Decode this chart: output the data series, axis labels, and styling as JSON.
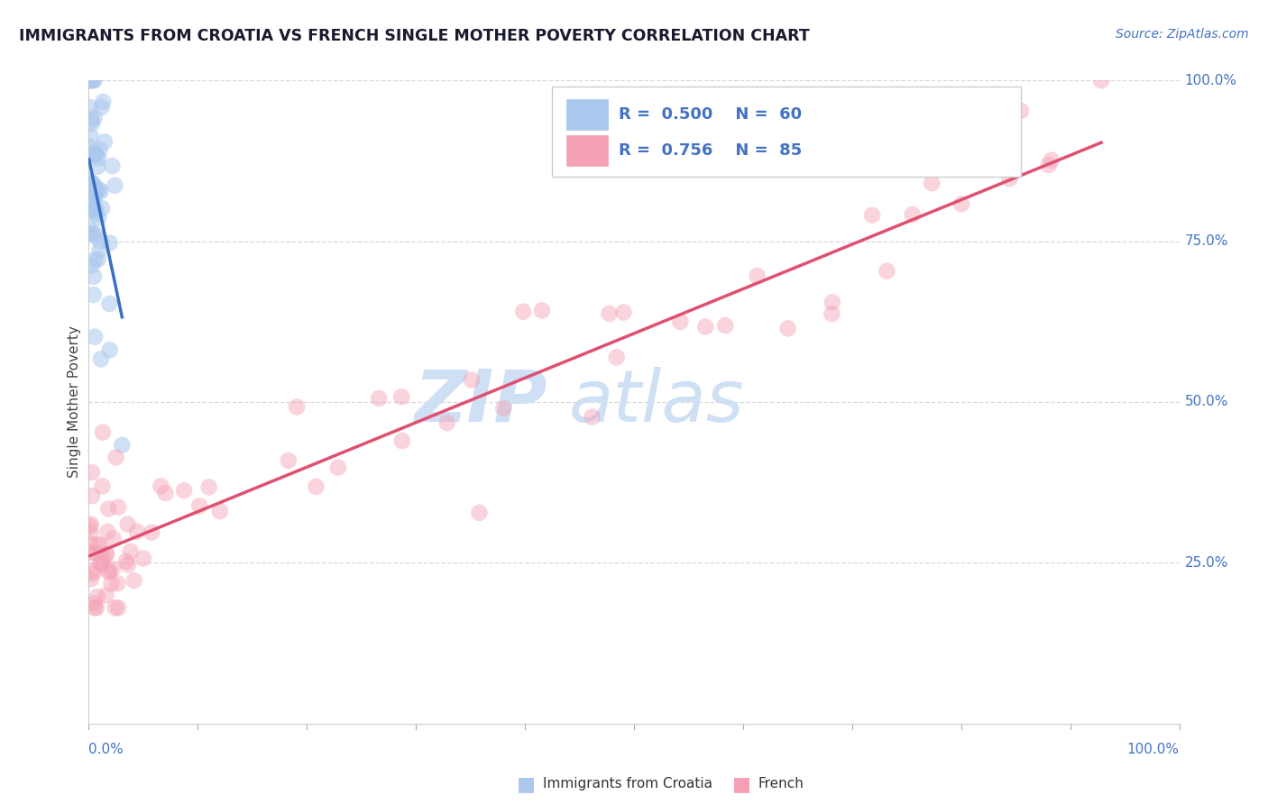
{
  "title": "IMMIGRANTS FROM CROATIA VS FRENCH SINGLE MOTHER POVERTY CORRELATION CHART",
  "source": "Source: ZipAtlas.com",
  "ylabel": "Single Mother Poverty",
  "watermark_zip": "ZIP",
  "watermark_atlas": "atlas",
  "legend": [
    {
      "label": "Immigrants from Croatia",
      "color": "#aac8ed",
      "line_color": "#3a6fc4",
      "R": 0.5,
      "N": 60
    },
    {
      "label": "French",
      "color": "#f4a0b5",
      "line_color": "#e05070",
      "R": 0.756,
      "N": 85
    }
  ],
  "background_color": "#ffffff",
  "grid_color": "#d8d8d8",
  "title_color": "#1a1a2e",
  "source_color": "#4472c4",
  "watermark_color": "#cfe0f5",
  "axis_label_color": "#4472c4",
  "right_ytick_labels": [
    "100.0%",
    "75.0%",
    "50.0%",
    "25.0%"
  ],
  "right_ytick_positions": [
    1.0,
    0.75,
    0.5,
    0.25
  ],
  "bottom_xtick_labels": [
    "0.0%",
    "100.0%"
  ],
  "legend_box_color": "#f0f0f0"
}
